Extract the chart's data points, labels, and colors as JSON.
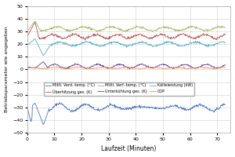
{
  "title": "",
  "xlabel": "Laufzeit (Minuten)",
  "ylabel": "Betriebsparameter wie angegeben",
  "xlim": [
    0,
    75
  ],
  "ylim": [
    -50,
    50
  ],
  "xticks": [
    0,
    10,
    20,
    30,
    40,
    50,
    60,
    70
  ],
  "yticks": [
    -50,
    -40,
    -30,
    -20,
    -10,
    0,
    10,
    20,
    30,
    40,
    50
  ],
  "legend": [
    {
      "label": "Mittl. Verd.-temp. (°C)",
      "color": "#4472C4"
    },
    {
      "label": "Überhitzung ges. (K)",
      "color": "#C0504D"
    },
    {
      "label": "Mittl. Verf.-temp. (°C)",
      "color": "#9BBB59"
    },
    {
      "label": "Unterkühlung ges. (K)",
      "color": "#7030A0"
    },
    {
      "label": "Kälteleistung (kW)",
      "color": "#4BACC6"
    },
    {
      "label": "COP",
      "color": "#F79646"
    }
  ],
  "bg_color": "#FFFFFF",
  "grid_color": "#D0D0D0"
}
